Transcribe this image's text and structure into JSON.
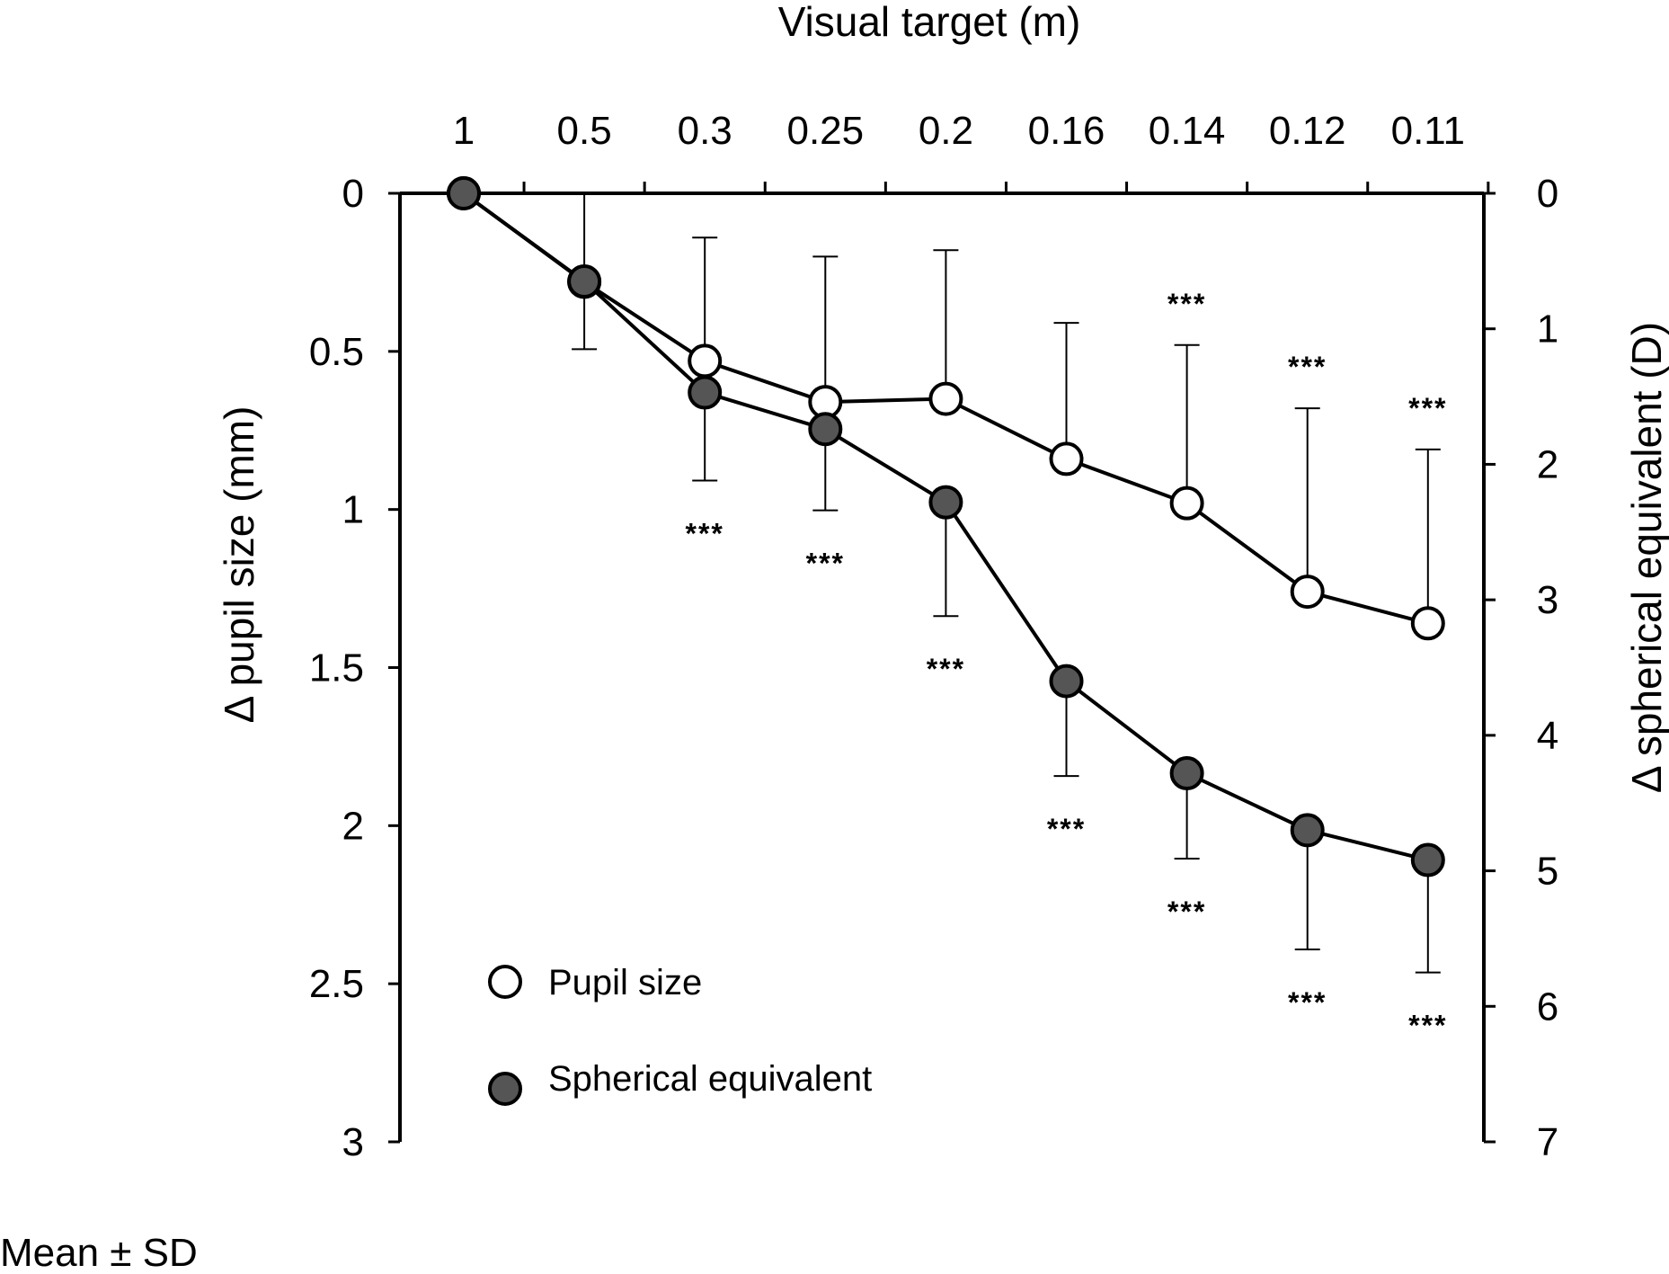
{
  "chart_data": {
    "type": "line",
    "title": "",
    "top_xlabel": "Visual target (m)",
    "categories": [
      "1",
      "0.5",
      "0.3",
      "0.25",
      "0.2",
      "0.16",
      "0.14",
      "0.12",
      "0.11"
    ],
    "left_ylabel": "Δ pupil size (mm)",
    "right_ylabel": "Δ spherical equivalent (D)",
    "left_ylim": [
      0,
      3
    ],
    "right_ylim": [
      0,
      7
    ],
    "left_ticks": [
      "0",
      "0.5",
      "1",
      "1.5",
      "2",
      "2.5",
      "3"
    ],
    "right_ticks": [
      "0",
      "1",
      "2",
      "3",
      "4",
      "5",
      "6",
      "7"
    ],
    "y_inverted": true,
    "grid": false,
    "legend_position": "bottom-left",
    "series": [
      {
        "name": "Pupil size",
        "axis": "left",
        "marker": "open-circle",
        "values": [
          0,
          0.28,
          0.53,
          0.66,
          0.65,
          0.84,
          0.98,
          1.26,
          1.36
        ],
        "sd_upper": [
          0,
          0.28,
          0.39,
          0.46,
          0.47,
          0.43,
          0.5,
          0.58,
          0.55
        ],
        "significance": [
          "",
          "",
          "",
          "",
          "",
          "",
          "***",
          "***",
          "***"
        ]
      },
      {
        "name": "Spherical equivalent",
        "axis": "right",
        "marker": "filled-circle",
        "color": "#555555",
        "values": [
          0,
          0.65,
          1.47,
          1.74,
          2.28,
          3.6,
          4.28,
          4.7,
          4.92
        ],
        "sd_lower": [
          0,
          0.5,
          0.65,
          0.6,
          0.84,
          0.7,
          0.63,
          0.88,
          0.83
        ],
        "significance": [
          "",
          "",
          "***",
          "***",
          "***",
          "***",
          "***",
          "***",
          "***"
        ]
      }
    ]
  },
  "note": "Mean ± SD"
}
